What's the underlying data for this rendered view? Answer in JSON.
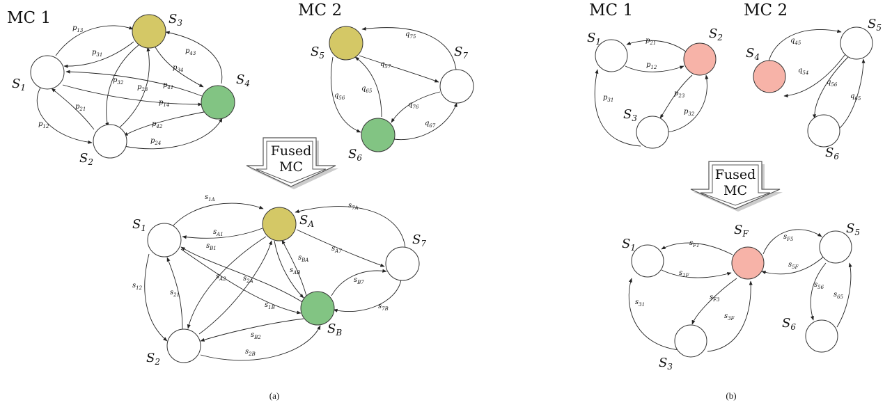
{
  "colors": {
    "yellow": "#d4c866",
    "green": "#82c483",
    "pink": "#f7b3a8",
    "white": "#ffffff",
    "edge": "#222222"
  },
  "panel_a": {
    "caption": "(a)",
    "fused_label_line1": "Fused",
    "fused_label_line2": "MC",
    "mc1": {
      "title": "MC 1",
      "states": [
        {
          "id": "S1",
          "base": "S",
          "sub": "1",
          "color": "white"
        },
        {
          "id": "S2",
          "base": "S",
          "sub": "2",
          "color": "white"
        },
        {
          "id": "S3",
          "base": "S",
          "sub": "3",
          "color": "yellow"
        },
        {
          "id": "S4",
          "base": "S",
          "sub": "4",
          "color": "green"
        }
      ],
      "edges": [
        {
          "from": "S1",
          "to": "S3",
          "base": "p",
          "sub": "13"
        },
        {
          "from": "S3",
          "to": "S1",
          "base": "p",
          "sub": "31"
        },
        {
          "from": "S4",
          "to": "S3",
          "base": "p",
          "sub": "43"
        },
        {
          "from": "S3",
          "to": "S4",
          "base": "p",
          "sub": "34"
        },
        {
          "from": "S3",
          "to": "S2",
          "base": "p",
          "sub": "32"
        },
        {
          "from": "S2",
          "to": "S3",
          "base": "p",
          "sub": "23"
        },
        {
          "from": "S4",
          "to": "S1",
          "base": "p",
          "sub": "41"
        },
        {
          "from": "S2",
          "to": "S1",
          "base": "p",
          "sub": "21"
        },
        {
          "from": "S1",
          "to": "S4",
          "base": "p",
          "sub": "14"
        },
        {
          "from": "S1",
          "to": "S2",
          "base": "p",
          "sub": "12"
        },
        {
          "from": "S4",
          "to": "S2",
          "base": "p",
          "sub": "42"
        },
        {
          "from": "S2",
          "to": "S4",
          "base": "p",
          "sub": "24"
        }
      ]
    },
    "mc2": {
      "title": "MC 2",
      "states": [
        {
          "id": "S5",
          "base": "S",
          "sub": "5",
          "color": "yellow"
        },
        {
          "id": "S6",
          "base": "S",
          "sub": "6",
          "color": "green"
        },
        {
          "id": "S7",
          "base": "S",
          "sub": "7",
          "color": "white"
        }
      ],
      "edges": [
        {
          "from": "S7",
          "to": "S5",
          "base": "q",
          "sub": "75"
        },
        {
          "from": "S5",
          "to": "S7",
          "base": "q",
          "sub": "57"
        },
        {
          "from": "S5",
          "to": "S6",
          "base": "q",
          "sub": "56"
        },
        {
          "from": "S6",
          "to": "S5",
          "base": "q",
          "sub": "65"
        },
        {
          "from": "S7",
          "to": "S6",
          "base": "q",
          "sub": "76"
        },
        {
          "from": "S6",
          "to": "S7",
          "base": "q",
          "sub": "67"
        }
      ]
    },
    "fused": {
      "states": [
        {
          "id": "S1",
          "base": "S",
          "sub": "1",
          "color": "white"
        },
        {
          "id": "SA",
          "base": "S",
          "sub": "A",
          "color": "yellow"
        },
        {
          "id": "S7",
          "base": "S",
          "sub": "7",
          "color": "white"
        },
        {
          "id": "SB",
          "base": "S",
          "sub": "B",
          "color": "green"
        },
        {
          "id": "S2",
          "base": "S",
          "sub": "2",
          "color": "white"
        }
      ],
      "edges": [
        {
          "from": "S1",
          "to": "SA",
          "base": "s",
          "sub": "1A"
        },
        {
          "from": "SA",
          "to": "S1",
          "base": "s",
          "sub": "A1"
        },
        {
          "from": "S7",
          "to": "SA",
          "base": "s",
          "sub": "7A"
        },
        {
          "from": "SB",
          "to": "S1",
          "base": "s",
          "sub": "B1"
        },
        {
          "from": "SB",
          "to": "SA",
          "base": "s",
          "sub": "BA"
        },
        {
          "from": "SA",
          "to": "S7",
          "base": "s",
          "sub": "A7"
        },
        {
          "from": "SA",
          "to": "SB",
          "base": "s",
          "sub": "AB"
        },
        {
          "from": "SA",
          "to": "S2",
          "base": "s",
          "sub": "A2"
        },
        {
          "from": "S2",
          "to": "SA",
          "base": "s",
          "sub": "2A"
        },
        {
          "from": "S1",
          "to": "S2",
          "base": "s",
          "sub": "12"
        },
        {
          "from": "S2",
          "to": "S1",
          "base": "s",
          "sub": "21"
        },
        {
          "from": "SB",
          "to": "S7",
          "base": "s",
          "sub": "B7"
        },
        {
          "from": "S1",
          "to": "SB",
          "base": "s",
          "sub": "1B"
        },
        {
          "from": "S7",
          "to": "SB",
          "base": "s",
          "sub": "7B"
        },
        {
          "from": "SB",
          "to": "S2",
          "base": "s",
          "sub": "B2"
        },
        {
          "from": "S2",
          "to": "SB",
          "base": "s",
          "sub": "2B"
        }
      ]
    }
  },
  "panel_b": {
    "caption": "(b)",
    "fused_label_line1": "Fused",
    "fused_label_line2": "MC",
    "mc1": {
      "title": "MC 1",
      "states": [
        {
          "id": "S1",
          "base": "S",
          "sub": "1",
          "color": "white"
        },
        {
          "id": "S2",
          "base": "S",
          "sub": "2",
          "color": "pink"
        },
        {
          "id": "S3",
          "base": "S",
          "sub": "3",
          "color": "white"
        }
      ],
      "edges": [
        {
          "from": "S2",
          "to": "S1",
          "base": "p",
          "sub": "21"
        },
        {
          "from": "S1",
          "to": "S2",
          "base": "p",
          "sub": "12"
        },
        {
          "from": "S2",
          "to": "S3",
          "base": "p",
          "sub": "23"
        },
        {
          "from": "S3",
          "to": "S2",
          "base": "p",
          "sub": "32"
        },
        {
          "from": "S3",
          "to": "S1",
          "base": "p",
          "sub": "31"
        }
      ]
    },
    "mc2": {
      "title": "MC 2",
      "states": [
        {
          "id": "S4",
          "base": "S",
          "sub": "4",
          "color": "pink"
        },
        {
          "id": "S5",
          "base": "S",
          "sub": "5",
          "color": "white"
        },
        {
          "id": "S6",
          "base": "S",
          "sub": "6",
          "color": "white"
        }
      ],
      "edges": [
        {
          "from": "S4",
          "to": "S5",
          "base": "q",
          "sub": "45"
        },
        {
          "from": "S5",
          "to": "S4",
          "base": "q",
          "sub": "54"
        },
        {
          "from": "S5",
          "to": "S6",
          "base": "q",
          "sub": "56"
        },
        {
          "from": "S6",
          "to": "S5",
          "base": "q",
          "sub": "65"
        }
      ]
    },
    "fused": {
      "states": [
        {
          "id": "S1",
          "base": "S",
          "sub": "1",
          "color": "white"
        },
        {
          "id": "SF",
          "base": "S",
          "sub": "F",
          "color": "pink"
        },
        {
          "id": "S5",
          "base": "S",
          "sub": "5",
          "color": "white"
        },
        {
          "id": "S3",
          "base": "S",
          "sub": "3",
          "color": "white"
        },
        {
          "id": "S6",
          "base": "S",
          "sub": "6",
          "color": "white"
        }
      ],
      "edges": [
        {
          "from": "SF",
          "to": "S1",
          "base": "s",
          "sub": "F1"
        },
        {
          "from": "S1",
          "to": "SF",
          "base": "s",
          "sub": "1F"
        },
        {
          "from": "SF",
          "to": "S5",
          "base": "s",
          "sub": "F5"
        },
        {
          "from": "S5",
          "to": "SF",
          "base": "s",
          "sub": "5F"
        },
        {
          "from": "SF",
          "to": "S3",
          "base": "s",
          "sub": "F3"
        },
        {
          "from": "S3",
          "to": "SF",
          "base": "s",
          "sub": "3F"
        },
        {
          "from": "S3",
          "to": "S1",
          "base": "s",
          "sub": "31"
        },
        {
          "from": "S5",
          "to": "S6",
          "base": "s",
          "sub": "56"
        },
        {
          "from": "S6",
          "to": "S5",
          "base": "s",
          "sub": "65"
        }
      ]
    }
  }
}
